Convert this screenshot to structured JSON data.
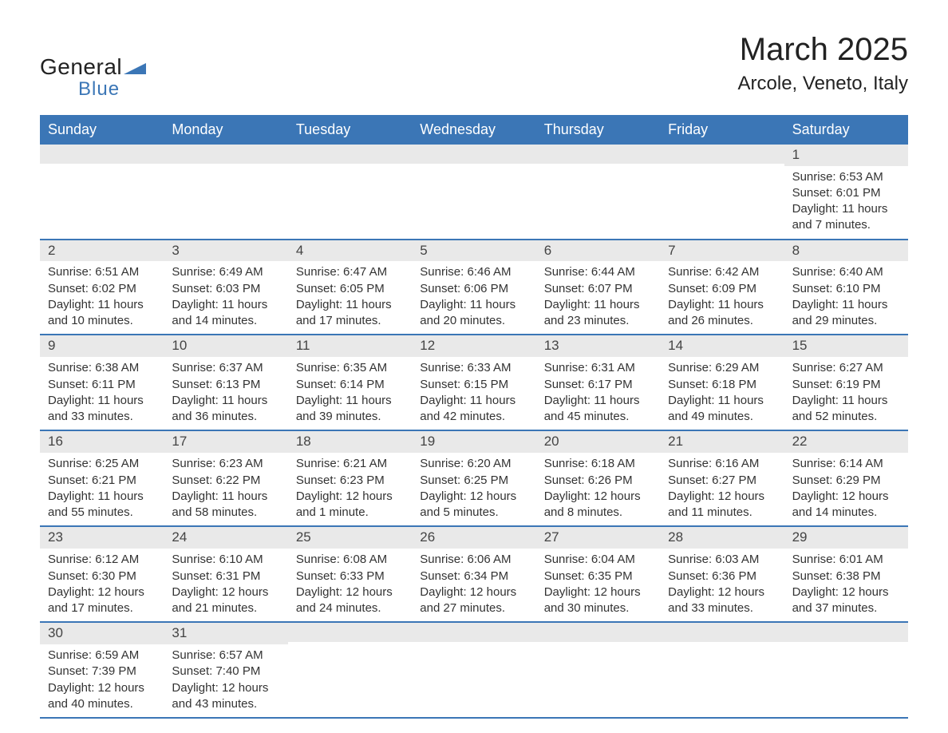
{
  "brand": {
    "name_part1": "General",
    "name_part2": "Blue",
    "color_primary": "#3b76b6",
    "color_text": "#222222"
  },
  "header": {
    "month_title": "March 2025",
    "location": "Arcole, Veneto, Italy"
  },
  "styling": {
    "header_bg": "#3b76b6",
    "header_text": "#ffffff",
    "daynum_bg": "#e9e9e9",
    "row_divider": "#3b76b6",
    "body_text": "#333333",
    "page_bg": "#ffffff",
    "weekday_fontsize": 18,
    "body_fontsize": 15,
    "title_fontsize": 40,
    "location_fontsize": 24
  },
  "calendar": {
    "type": "table",
    "weekdays": [
      "Sunday",
      "Monday",
      "Tuesday",
      "Wednesday",
      "Thursday",
      "Friday",
      "Saturday"
    ],
    "weeks": [
      [
        null,
        null,
        null,
        null,
        null,
        null,
        {
          "n": "1",
          "sunrise": "Sunrise: 6:53 AM",
          "sunset": "Sunset: 6:01 PM",
          "daylight": "Daylight: 11 hours and 7 minutes."
        }
      ],
      [
        {
          "n": "2",
          "sunrise": "Sunrise: 6:51 AM",
          "sunset": "Sunset: 6:02 PM",
          "daylight": "Daylight: 11 hours and 10 minutes."
        },
        {
          "n": "3",
          "sunrise": "Sunrise: 6:49 AM",
          "sunset": "Sunset: 6:03 PM",
          "daylight": "Daylight: 11 hours and 14 minutes."
        },
        {
          "n": "4",
          "sunrise": "Sunrise: 6:47 AM",
          "sunset": "Sunset: 6:05 PM",
          "daylight": "Daylight: 11 hours and 17 minutes."
        },
        {
          "n": "5",
          "sunrise": "Sunrise: 6:46 AM",
          "sunset": "Sunset: 6:06 PM",
          "daylight": "Daylight: 11 hours and 20 minutes."
        },
        {
          "n": "6",
          "sunrise": "Sunrise: 6:44 AM",
          "sunset": "Sunset: 6:07 PM",
          "daylight": "Daylight: 11 hours and 23 minutes."
        },
        {
          "n": "7",
          "sunrise": "Sunrise: 6:42 AM",
          "sunset": "Sunset: 6:09 PM",
          "daylight": "Daylight: 11 hours and 26 minutes."
        },
        {
          "n": "8",
          "sunrise": "Sunrise: 6:40 AM",
          "sunset": "Sunset: 6:10 PM",
          "daylight": "Daylight: 11 hours and 29 minutes."
        }
      ],
      [
        {
          "n": "9",
          "sunrise": "Sunrise: 6:38 AM",
          "sunset": "Sunset: 6:11 PM",
          "daylight": "Daylight: 11 hours and 33 minutes."
        },
        {
          "n": "10",
          "sunrise": "Sunrise: 6:37 AM",
          "sunset": "Sunset: 6:13 PM",
          "daylight": "Daylight: 11 hours and 36 minutes."
        },
        {
          "n": "11",
          "sunrise": "Sunrise: 6:35 AM",
          "sunset": "Sunset: 6:14 PM",
          "daylight": "Daylight: 11 hours and 39 minutes."
        },
        {
          "n": "12",
          "sunrise": "Sunrise: 6:33 AM",
          "sunset": "Sunset: 6:15 PM",
          "daylight": "Daylight: 11 hours and 42 minutes."
        },
        {
          "n": "13",
          "sunrise": "Sunrise: 6:31 AM",
          "sunset": "Sunset: 6:17 PM",
          "daylight": "Daylight: 11 hours and 45 minutes."
        },
        {
          "n": "14",
          "sunrise": "Sunrise: 6:29 AM",
          "sunset": "Sunset: 6:18 PM",
          "daylight": "Daylight: 11 hours and 49 minutes."
        },
        {
          "n": "15",
          "sunrise": "Sunrise: 6:27 AM",
          "sunset": "Sunset: 6:19 PM",
          "daylight": "Daylight: 11 hours and 52 minutes."
        }
      ],
      [
        {
          "n": "16",
          "sunrise": "Sunrise: 6:25 AM",
          "sunset": "Sunset: 6:21 PM",
          "daylight": "Daylight: 11 hours and 55 minutes."
        },
        {
          "n": "17",
          "sunrise": "Sunrise: 6:23 AM",
          "sunset": "Sunset: 6:22 PM",
          "daylight": "Daylight: 11 hours and 58 minutes."
        },
        {
          "n": "18",
          "sunrise": "Sunrise: 6:21 AM",
          "sunset": "Sunset: 6:23 PM",
          "daylight": "Daylight: 12 hours and 1 minute."
        },
        {
          "n": "19",
          "sunrise": "Sunrise: 6:20 AM",
          "sunset": "Sunset: 6:25 PM",
          "daylight": "Daylight: 12 hours and 5 minutes."
        },
        {
          "n": "20",
          "sunrise": "Sunrise: 6:18 AM",
          "sunset": "Sunset: 6:26 PM",
          "daylight": "Daylight: 12 hours and 8 minutes."
        },
        {
          "n": "21",
          "sunrise": "Sunrise: 6:16 AM",
          "sunset": "Sunset: 6:27 PM",
          "daylight": "Daylight: 12 hours and 11 minutes."
        },
        {
          "n": "22",
          "sunrise": "Sunrise: 6:14 AM",
          "sunset": "Sunset: 6:29 PM",
          "daylight": "Daylight: 12 hours and 14 minutes."
        }
      ],
      [
        {
          "n": "23",
          "sunrise": "Sunrise: 6:12 AM",
          "sunset": "Sunset: 6:30 PM",
          "daylight": "Daylight: 12 hours and 17 minutes."
        },
        {
          "n": "24",
          "sunrise": "Sunrise: 6:10 AM",
          "sunset": "Sunset: 6:31 PM",
          "daylight": "Daylight: 12 hours and 21 minutes."
        },
        {
          "n": "25",
          "sunrise": "Sunrise: 6:08 AM",
          "sunset": "Sunset: 6:33 PM",
          "daylight": "Daylight: 12 hours and 24 minutes."
        },
        {
          "n": "26",
          "sunrise": "Sunrise: 6:06 AM",
          "sunset": "Sunset: 6:34 PM",
          "daylight": "Daylight: 12 hours and 27 minutes."
        },
        {
          "n": "27",
          "sunrise": "Sunrise: 6:04 AM",
          "sunset": "Sunset: 6:35 PM",
          "daylight": "Daylight: 12 hours and 30 minutes."
        },
        {
          "n": "28",
          "sunrise": "Sunrise: 6:03 AM",
          "sunset": "Sunset: 6:36 PM",
          "daylight": "Daylight: 12 hours and 33 minutes."
        },
        {
          "n": "29",
          "sunrise": "Sunrise: 6:01 AM",
          "sunset": "Sunset: 6:38 PM",
          "daylight": "Daylight: 12 hours and 37 minutes."
        }
      ],
      [
        {
          "n": "30",
          "sunrise": "Sunrise: 6:59 AM",
          "sunset": "Sunset: 7:39 PM",
          "daylight": "Daylight: 12 hours and 40 minutes."
        },
        {
          "n": "31",
          "sunrise": "Sunrise: 6:57 AM",
          "sunset": "Sunset: 7:40 PM",
          "daylight": "Daylight: 12 hours and 43 minutes."
        },
        null,
        null,
        null,
        null,
        null
      ]
    ]
  }
}
